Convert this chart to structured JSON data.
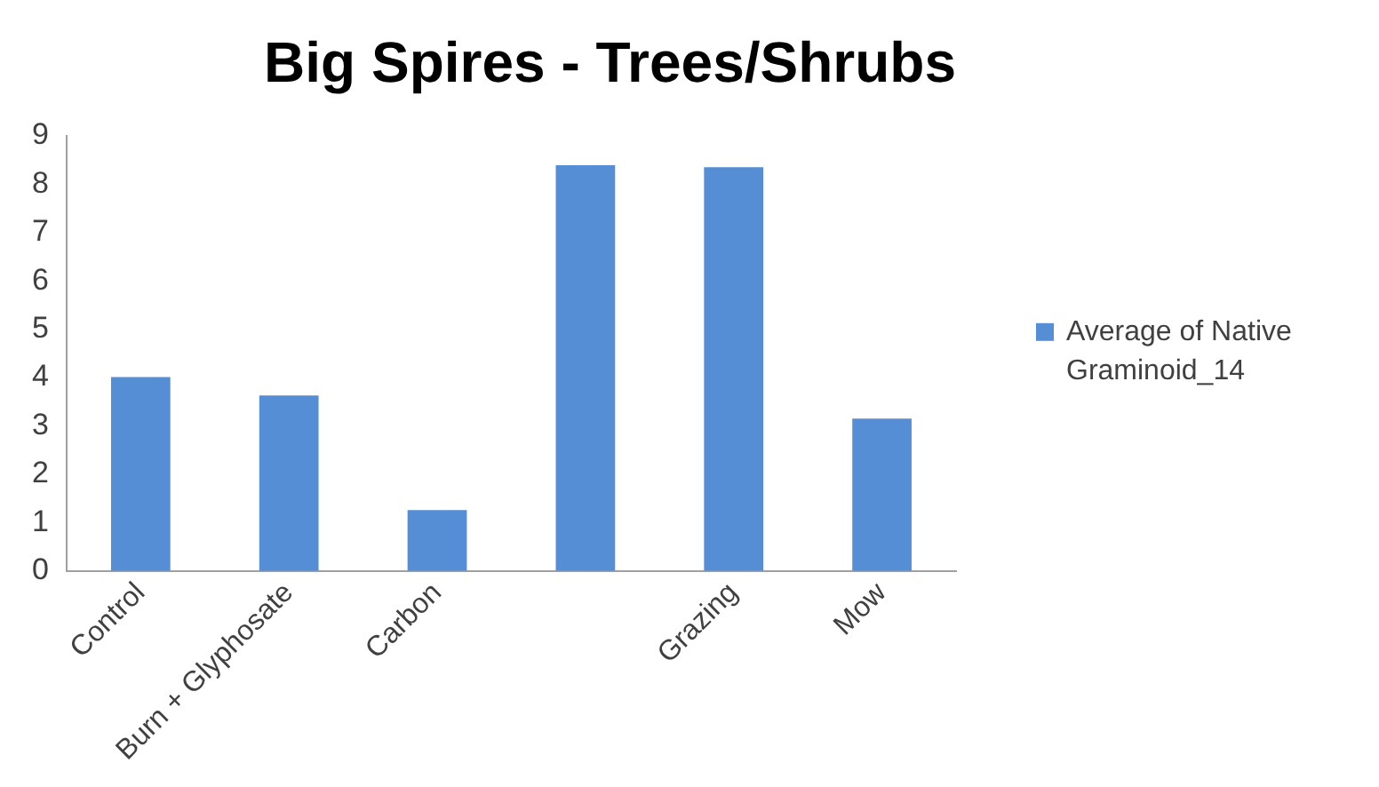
{
  "chart_data": {
    "type": "bar",
    "title": "Big Spires - Trees/Shrubs",
    "categories": [
      "Control",
      "Burn + Glyphosate",
      "Carbon",
      null,
      "Grazing",
      "Mow"
    ],
    "series": [
      {
        "name": "Average of Native Graminoid_14",
        "color": "#558ed5",
        "values": [
          4.01,
          3.63,
          1.26,
          8.39,
          8.35,
          3.15
        ]
      }
    ],
    "ylim": [
      0,
      9
    ],
    "yticks": [
      0,
      1,
      2,
      3,
      4,
      5,
      6,
      7,
      8,
      9
    ],
    "grid": false,
    "legend": "right"
  }
}
